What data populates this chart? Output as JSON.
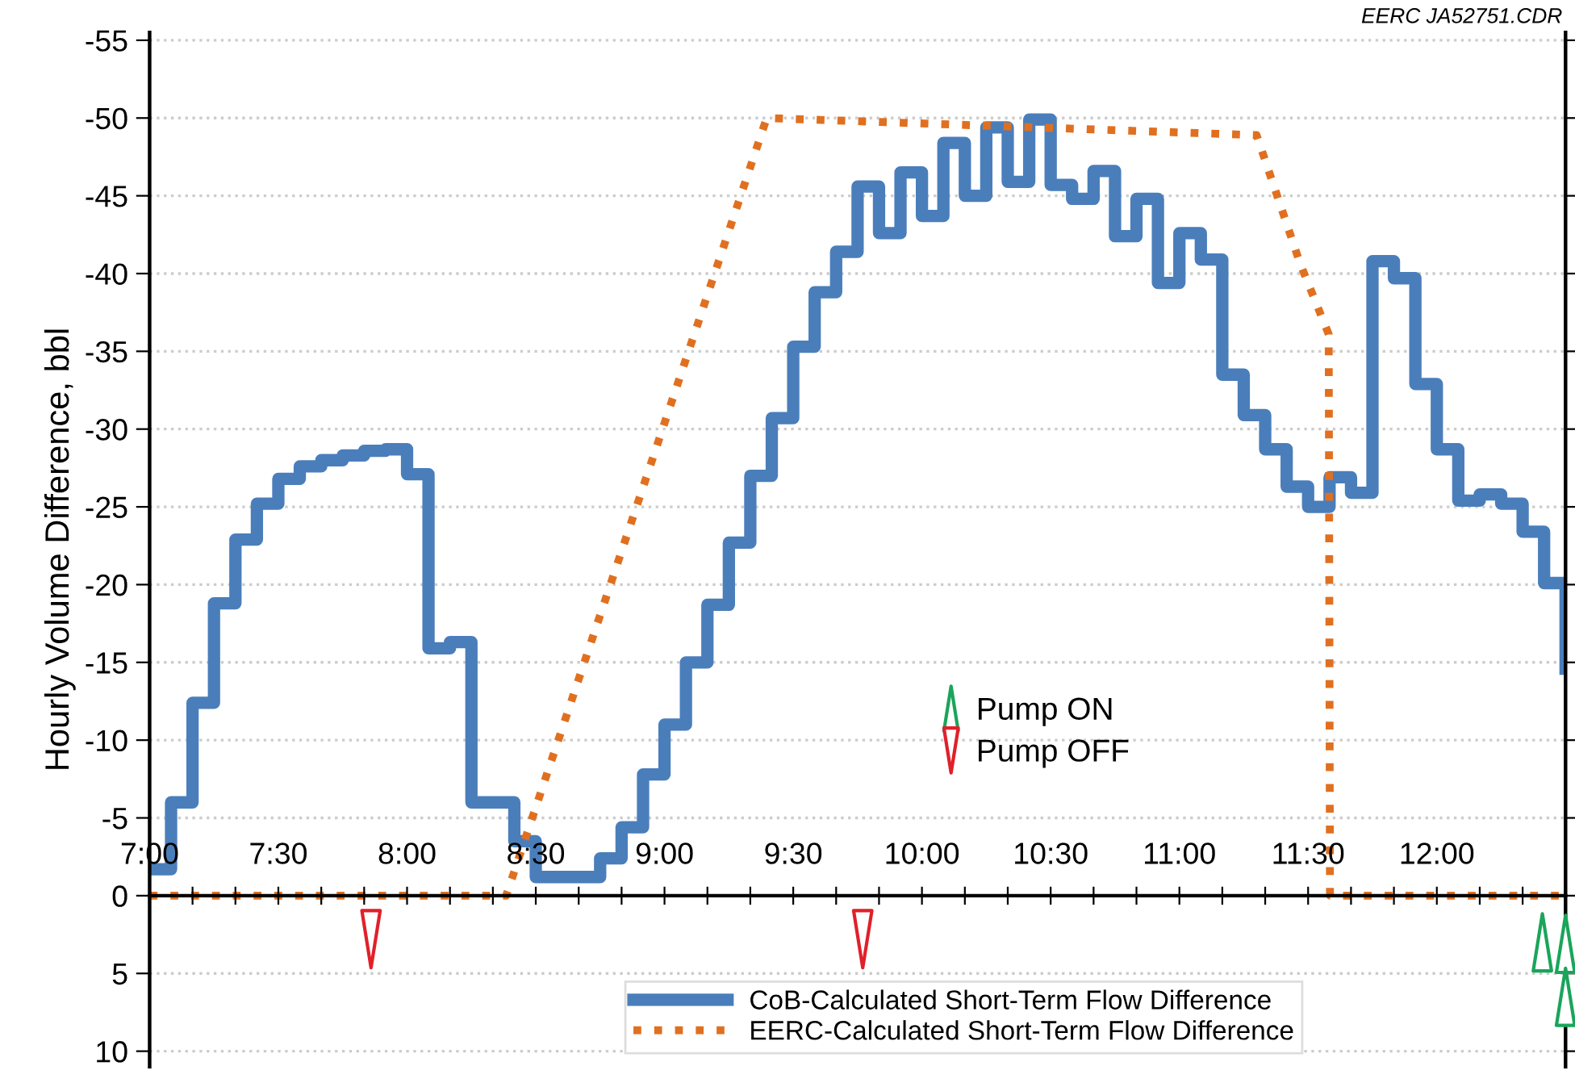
{
  "chart_data": {
    "type": "step",
    "ylabel": "Hourly Volume Difference, bbl",
    "annotations": [
      "EERC JA52751.CDR"
    ],
    "xlim": [
      7,
      12.5
    ],
    "xticks": [
      {
        "value": 7,
        "label": "7:00"
      },
      {
        "value": 7.1667,
        "label": null
      },
      {
        "value": 7.3333,
        "label": null
      },
      {
        "value": 7.5,
        "label": "7:30"
      },
      {
        "value": 7.6667,
        "label": null
      },
      {
        "value": 7.8333,
        "label": null
      },
      {
        "value": 8,
        "label": "8:00"
      },
      {
        "value": 8.1667,
        "label": null
      },
      {
        "value": 8.3333,
        "label": null
      },
      {
        "value": 8.5,
        "label": "8:30"
      },
      {
        "value": 8.6667,
        "label": null
      },
      {
        "value": 8.8333,
        "label": null
      },
      {
        "value": 9,
        "label": "9:00"
      },
      {
        "value": 9.1667,
        "label": null
      },
      {
        "value": 9.3333,
        "label": null
      },
      {
        "value": 9.5,
        "label": "9:30"
      },
      {
        "value": 9.6667,
        "label": null
      },
      {
        "value": 9.8333,
        "label": null
      },
      {
        "value": 10,
        "label": "10:00"
      },
      {
        "value": 10.1667,
        "label": null
      },
      {
        "value": 10.3333,
        "label": null
      },
      {
        "value": 10.5,
        "label": "10:30"
      },
      {
        "value": 10.6667,
        "label": null
      },
      {
        "value": 10.8333,
        "label": null
      },
      {
        "value": 11,
        "label": "11:00"
      },
      {
        "value": 11.1667,
        "label": null
      },
      {
        "value": 11.3333,
        "label": null
      },
      {
        "value": 11.5,
        "label": "11:30"
      },
      {
        "value": 11.6667,
        "label": null
      },
      {
        "value": 11.8333,
        "label": null
      },
      {
        "value": 12,
        "label": "12:00"
      },
      {
        "value": 12.1667,
        "label": null
      },
      {
        "value": 12.3333,
        "label": null
      }
    ],
    "ylim": [
      11,
      -55.5
    ],
    "yticks": [
      -55,
      -50,
      -45,
      -40,
      -35,
      -30,
      -25,
      -20,
      -15,
      -10,
      -5,
      0,
      5,
      10
    ],
    "grid": "y",
    "legend": "bottom",
    "series": [
      {
        "name": "CoB-Calculated Short-Term Flow Difference",
        "color": "#4a7ebb",
        "line_style": "solid",
        "x": [
          7,
          7.0833,
          7.1667,
          7.25,
          7.3333,
          7.4167,
          7.5,
          7.5833,
          7.6667,
          7.75,
          7.8333,
          7.9167,
          8,
          8.0833,
          8.1667,
          8.25,
          8.3333,
          8.4167,
          8.5,
          8.5833,
          8.6667,
          8.75,
          8.8333,
          8.9167,
          9,
          9.0833,
          9.1667,
          9.25,
          9.3333,
          9.4167,
          9.5,
          9.5833,
          9.6667,
          9.75,
          9.8333,
          9.9167,
          10,
          10.0833,
          10.1667,
          10.25,
          10.3333,
          10.4167,
          10.5,
          10.5833,
          10.6667,
          10.75,
          10.8333,
          10.9167,
          11,
          11.0833,
          11.1667,
          11.25,
          11.3333,
          11.4167,
          11.5,
          11.5833,
          11.6667,
          11.75,
          11.8333,
          11.9167,
          12,
          12.0833,
          12.1667,
          12.25,
          12.3333,
          12.4167,
          12.5
        ],
        "values": [
          -1.7,
          -6.0,
          -12.4,
          -18.8,
          -22.9,
          -25.2,
          -26.8,
          -27.6,
          -28.0,
          -28.3,
          -28.6,
          -28.7,
          -27.1,
          -15.9,
          -16.3,
          -6.0,
          -6.0,
          -3.5,
          -1.2,
          -1.2,
          -1.2,
          -2.4,
          -4.4,
          -7.8,
          -11.0,
          -15.0,
          -18.7,
          -22.7,
          -27.0,
          -30.7,
          -35.3,
          -38.8,
          -41.4,
          -45.6,
          -42.6,
          -46.5,
          -43.7,
          -48.4,
          -45.0,
          -49.4,
          -45.9,
          -49.9,
          -45.7,
          -44.8,
          -46.6,
          -42.4,
          -44.8,
          -39.4,
          -42.6,
          -40.9,
          -33.5,
          -30.9,
          -28.7,
          -26.3,
          -25.0,
          -26.9,
          -25.9,
          -40.8,
          -39.7,
          -32.9,
          -28.7,
          -25.4,
          -25.8,
          -25.2,
          -23.4,
          -20.1,
          -14.6
        ]
      },
      {
        "name": "EERC-Calculated Short-Term Flow Difference",
        "type": "line",
        "color": "#e07020",
        "line_style": "dotted",
        "x": [
          7,
          8.385,
          9.397,
          11.3,
          11.47,
          11.58,
          11.585,
          12.5
        ],
        "values": [
          0,
          0,
          -50.0,
          -48.9,
          -40.6,
          -36.1,
          0,
          0
        ]
      },
      {
        "name": "Pump ON",
        "type": "scatter",
        "color": "#1aa55a",
        "marker": "triangle",
        "x": [
          12.41,
          12.5,
          12.5
        ],
        "values": [
          3.0,
          3.1,
          6.5
        ]
      },
      {
        "name": "Pump OFF",
        "type": "scatter",
        "color": "#e0202a",
        "marker": "triangle_down",
        "x": [
          7.86,
          9.77
        ],
        "values": [
          2.8,
          2.8
        ]
      }
    ]
  }
}
